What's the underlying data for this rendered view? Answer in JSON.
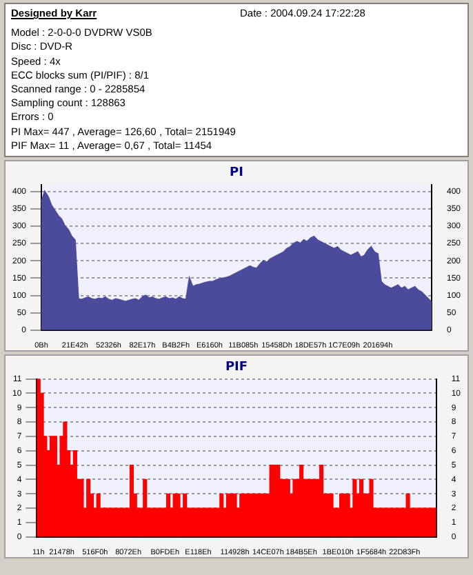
{
  "chart_data": [
    {
      "type": "other",
      "title": "Designed by Karr",
      "annotations": [
        "Date : 2004.09.24 17:22:28",
        "Model : 2-0-0-0 DVDRW VS0B",
        "Disc : DVD-R",
        "Speed : 4x",
        "ECC blocks sum (PI/PIF) : 8/1",
        "Scanned range : 0 - 2285854",
        "Sampling count : 128863",
        "Errors : 0",
        "PI Max= 447 , Average= 126,60 , Total= 2151949",
        "PIF Max= 11 , Average= 0,67 , Total= 11454"
      ]
    },
    {
      "type": "area",
      "title": "PI",
      "color": "#4b4b9b",
      "grid": "y",
      "legend": false,
      "categories": [
        "0Bh",
        null,
        null,
        null,
        null,
        null,
        null,
        null,
        null,
        null,
        "21E42h",
        null,
        null,
        null,
        null,
        null,
        null,
        null,
        null,
        null,
        "52326h",
        null,
        null,
        null,
        null,
        null,
        null,
        null,
        null,
        null,
        "82E17h",
        null,
        null,
        null,
        null,
        null,
        null,
        null,
        null,
        null,
        "B4B2Fh",
        null,
        null,
        null,
        null,
        null,
        null,
        null,
        null,
        null,
        "E6160h",
        null,
        null,
        null,
        null,
        null,
        null,
        null,
        null,
        null,
        "11B085h",
        null,
        null,
        null,
        null,
        null,
        null,
        null,
        null,
        null,
        "15458Dh",
        null,
        null,
        null,
        null,
        null,
        null,
        null,
        null,
        null,
        "18DE57h",
        null,
        null,
        null,
        null,
        null,
        null,
        null,
        null,
        null,
        "1C7E09h",
        null,
        null,
        null,
        null,
        null,
        null,
        null,
        null,
        null,
        "201694h",
        null,
        null,
        null,
        null,
        null,
        null,
        null,
        null,
        null,
        null,
        null,
        null,
        null,
        null,
        null,
        null
      ],
      "values": [
        370,
        400,
        385,
        360,
        345,
        330,
        320,
        300,
        290,
        270,
        260,
        90,
        88,
        92,
        95,
        90,
        88,
        92,
        90,
        95,
        88,
        85,
        90,
        88,
        85,
        82,
        85,
        88,
        90,
        85,
        95,
        100,
        92,
        95,
        90,
        88,
        92,
        95,
        90,
        92,
        88,
        95,
        90,
        88,
        150,
        125,
        130,
        132,
        135,
        138,
        140,
        140,
        145,
        148,
        150,
        152,
        155,
        160,
        165,
        170,
        175,
        180,
        185,
        180,
        178,
        190,
        200,
        195,
        205,
        210,
        215,
        220,
        225,
        235,
        240,
        250,
        255,
        250,
        260,
        255,
        265,
        270,
        260,
        255,
        250,
        245,
        240,
        235,
        240,
        230,
        225,
        220,
        215,
        220,
        225,
        210,
        215,
        230,
        240,
        225,
        220,
        140,
        130,
        125,
        120,
        125,
        130,
        120,
        125,
        115,
        120,
        125,
        115,
        110,
        100,
        90,
        80
      ],
      "ylim": [
        0,
        420
      ],
      "yticks": [
        0,
        50,
        100,
        150,
        200,
        250,
        300,
        350,
        400
      ],
      "y2lim": [
        0,
        420
      ],
      "y2ticks": [
        0,
        50,
        100,
        150,
        200,
        250,
        300,
        350,
        400
      ]
    },
    {
      "type": "bar",
      "title": "PIF",
      "color": "#ff0000",
      "grid": "y",
      "legend": false,
      "categories": [
        "11h",
        null,
        null,
        null,
        null,
        null,
        null,
        "21478h",
        null,
        null,
        null,
        null,
        null,
        null,
        null,
        null,
        null,
        "516F0h",
        null,
        null,
        null,
        null,
        null,
        null,
        null,
        null,
        null,
        "8072Eh",
        null,
        null,
        null,
        null,
        null,
        null,
        null,
        null,
        null,
        null,
        "B0FDEh",
        null,
        null,
        null,
        null,
        null,
        null,
        null,
        null,
        null,
        "E118Eh",
        null,
        null,
        null,
        null,
        null,
        null,
        null,
        null,
        null,
        null,
        "114928h",
        null,
        null,
        null,
        null,
        null,
        null,
        null,
        null,
        null,
        "14CE07h",
        null,
        null,
        null,
        null,
        null,
        null,
        null,
        null,
        null,
        "184B5Eh",
        null,
        null,
        null,
        null,
        null,
        null,
        null,
        null,
        null,
        null,
        "1BE010h",
        null,
        null,
        null,
        null,
        null,
        null,
        null,
        null,
        null,
        "1F5684h",
        null,
        null,
        null,
        null,
        null,
        null,
        null,
        null,
        null,
        "22D83Fh",
        null,
        null,
        null,
        null,
        null,
        null,
        null,
        null,
        null
      ],
      "values": [
        11,
        10,
        7,
        6,
        7,
        7,
        5,
        7,
        8,
        6,
        5,
        6,
        4,
        4,
        2,
        4,
        3,
        2,
        3,
        2,
        2,
        2,
        2,
        2,
        2,
        2,
        2,
        2,
        5,
        3,
        2,
        2,
        4,
        2,
        2,
        2,
        2,
        2,
        2,
        3,
        2,
        3,
        3,
        2,
        3,
        2,
        2,
        2,
        2,
        2,
        2,
        2,
        2,
        2,
        2,
        3,
        2,
        3,
        3,
        3,
        2,
        3,
        3,
        3,
        3,
        3,
        3,
        3,
        3,
        3,
        5,
        5,
        5,
        4,
        4,
        4,
        3,
        4,
        4,
        5,
        4,
        4,
        4,
        4,
        4,
        5,
        3,
        3,
        3,
        2,
        2,
        3,
        3,
        3,
        2,
        4,
        3,
        4,
        3,
        3,
        4,
        2,
        2,
        2,
        2,
        2,
        2,
        2,
        2,
        2,
        2,
        3,
        2,
        2,
        2,
        2,
        2,
        2,
        2,
        2
      ],
      "ylim": [
        0,
        11
      ],
      "yticks": [
        0,
        1,
        2,
        3,
        4,
        5,
        6,
        7,
        8,
        9,
        10,
        11
      ],
      "y2lim": [
        0,
        11
      ],
      "y2ticks": [
        0,
        1,
        2,
        3,
        4,
        5,
        6,
        7,
        8,
        9,
        10,
        11
      ]
    }
  ]
}
